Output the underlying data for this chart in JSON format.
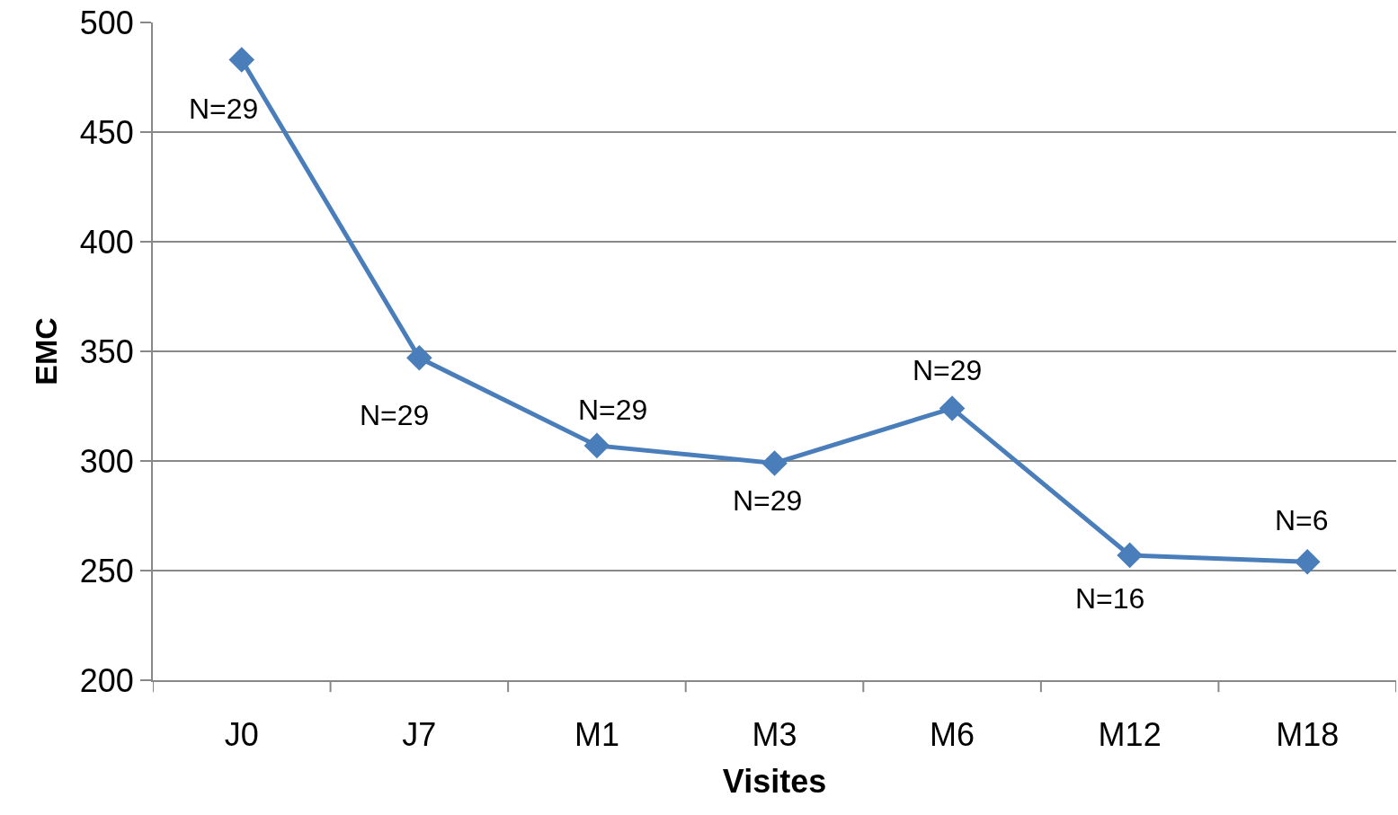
{
  "chart_data": {
    "type": "line",
    "xlabel": "Visites",
    "ylabel": "EMC",
    "categories": [
      "J0",
      "J7",
      "M1",
      "M3",
      "M6",
      "M12",
      "M18"
    ],
    "series": [
      {
        "color": "#4a7ebb",
        "values": [
          483,
          347,
          307,
          299,
          324,
          257,
          254
        ]
      }
    ],
    "ylim": [
      200,
      500
    ],
    "yticks": [
      200,
      250,
      300,
      350,
      400,
      450,
      500
    ],
    "grid": "y",
    "legend": false,
    "marker": "diamond",
    "line_style": "solid",
    "annotations": [
      {
        "text": "N=29",
        "x": "J0",
        "y": 483
      },
      {
        "text": "N=29",
        "x": "J7",
        "y": 347
      },
      {
        "text": "N=29",
        "x": "M1",
        "y": 307
      },
      {
        "text": "N=29",
        "x": "M3",
        "y": 299
      },
      {
        "text": "N=29",
        "x": "M6",
        "y": 324
      },
      {
        "text": "N=16",
        "x": "M12",
        "y": 257
      },
      {
        "text": "N=6",
        "x": "M18",
        "y": 254
      }
    ]
  }
}
